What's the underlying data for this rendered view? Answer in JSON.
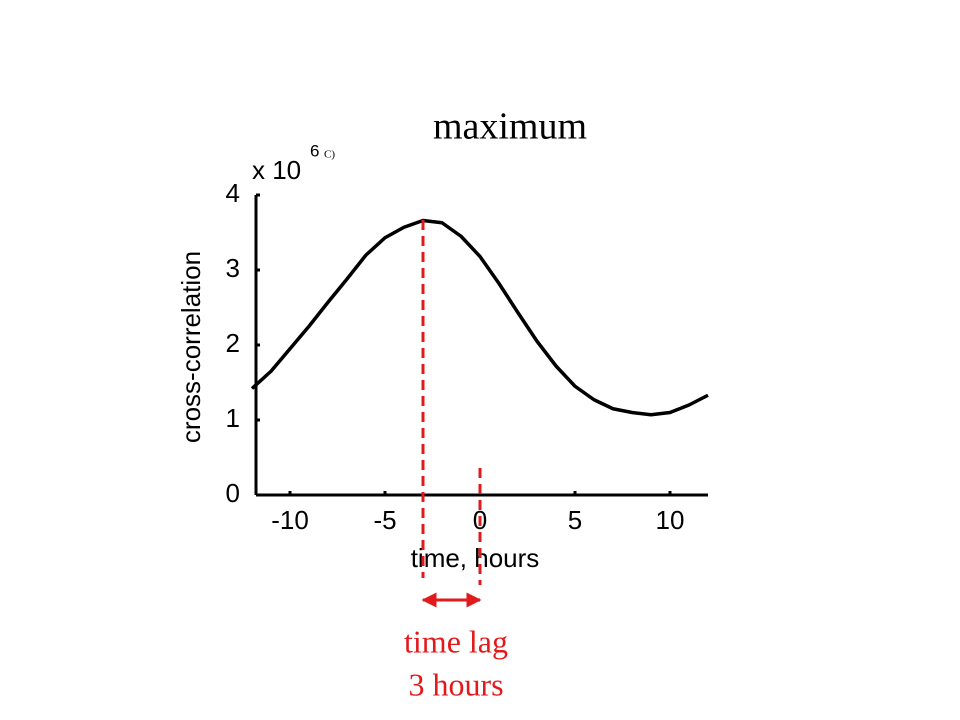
{
  "chart_data": {
    "type": "line",
    "title": "maximum",
    "xlabel": "time, hours",
    "ylabel": "cross-correlation",
    "multiplier": "x 10",
    "multiplier_exponent": "6",
    "panel_label": "C)",
    "x": [
      -12,
      -11,
      -10,
      -9,
      -8,
      -7,
      -6,
      -5,
      -4,
      -3,
      -2,
      -1,
      0,
      1,
      2,
      3,
      4,
      5,
      6,
      7,
      8,
      9,
      10,
      11,
      12
    ],
    "series": [
      {
        "color": "#000000",
        "values": [
          1.42,
          1.65,
          1.95,
          2.25,
          2.57,
          2.88,
          3.2,
          3.43,
          3.57,
          3.66,
          3.63,
          3.45,
          3.18,
          2.82,
          2.43,
          2.05,
          1.72,
          1.45,
          1.27,
          1.15,
          1.1,
          1.07,
          1.1,
          1.2,
          1.33
        ]
      }
    ],
    "xlim": [
      -12,
      12
    ],
    "ylim": [
      0,
      4
    ],
    "xticks": [
      -10,
      -5,
      0,
      5,
      10
    ],
    "yticks": [
      0,
      1,
      2,
      3,
      4
    ],
    "annotations": {
      "color": "#e31a1c",
      "lines": [
        -3,
        0
      ],
      "texts": [
        "time lag",
        "3 hours"
      ]
    }
  }
}
